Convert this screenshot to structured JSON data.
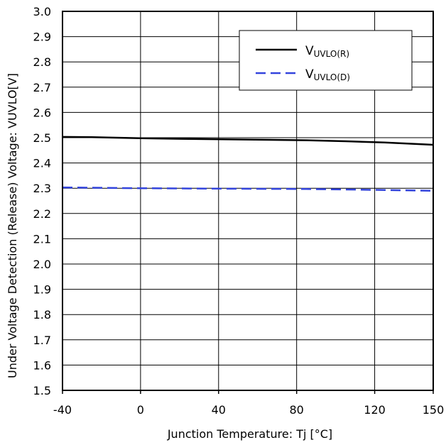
{
  "chart_data": {
    "type": "line",
    "xlabel": "Junction Temperature: Tj [°C]",
    "ylabel": "Under Voltage Detection (Release) Voltage: VUVLO[V]",
    "xticks": [
      -40,
      0,
      40,
      80,
      120,
      150
    ],
    "yticks": [
      "1.5",
      "1.6",
      "1.7",
      "1.8",
      "1.9",
      "2.0",
      "2.1",
      "2.2",
      "2.3",
      "2.4",
      "2.5",
      "2.6",
      "2.7",
      "2.8",
      "2.9",
      "3.0"
    ],
    "xlim": [
      -40,
      150
    ],
    "ylim": [
      1.5,
      3.0
    ],
    "grid": true,
    "legend_position": "top-right",
    "series": [
      {
        "name": "VUVLO(R)",
        "legend_main": "V",
        "legend_sub": "UVLO(R)",
        "style": "solid",
        "color": "#000000",
        "x": [
          -40,
          -25,
          0,
          25,
          50,
          85,
          105,
          125,
          150
        ],
        "y": [
          2.503,
          2.502,
          2.498,
          2.495,
          2.493,
          2.49,
          2.486,
          2.481,
          2.472
        ]
      },
      {
        "name": "VUVLO(D)",
        "legend_main": "V",
        "legend_sub": "UVLO(D)",
        "style": "dashed",
        "color": "#3344dd",
        "x": [
          -40,
          0,
          25,
          50,
          85,
          125,
          150
        ],
        "y": [
          2.303,
          2.3,
          2.299,
          2.298,
          2.297,
          2.293,
          2.29
        ]
      }
    ]
  }
}
